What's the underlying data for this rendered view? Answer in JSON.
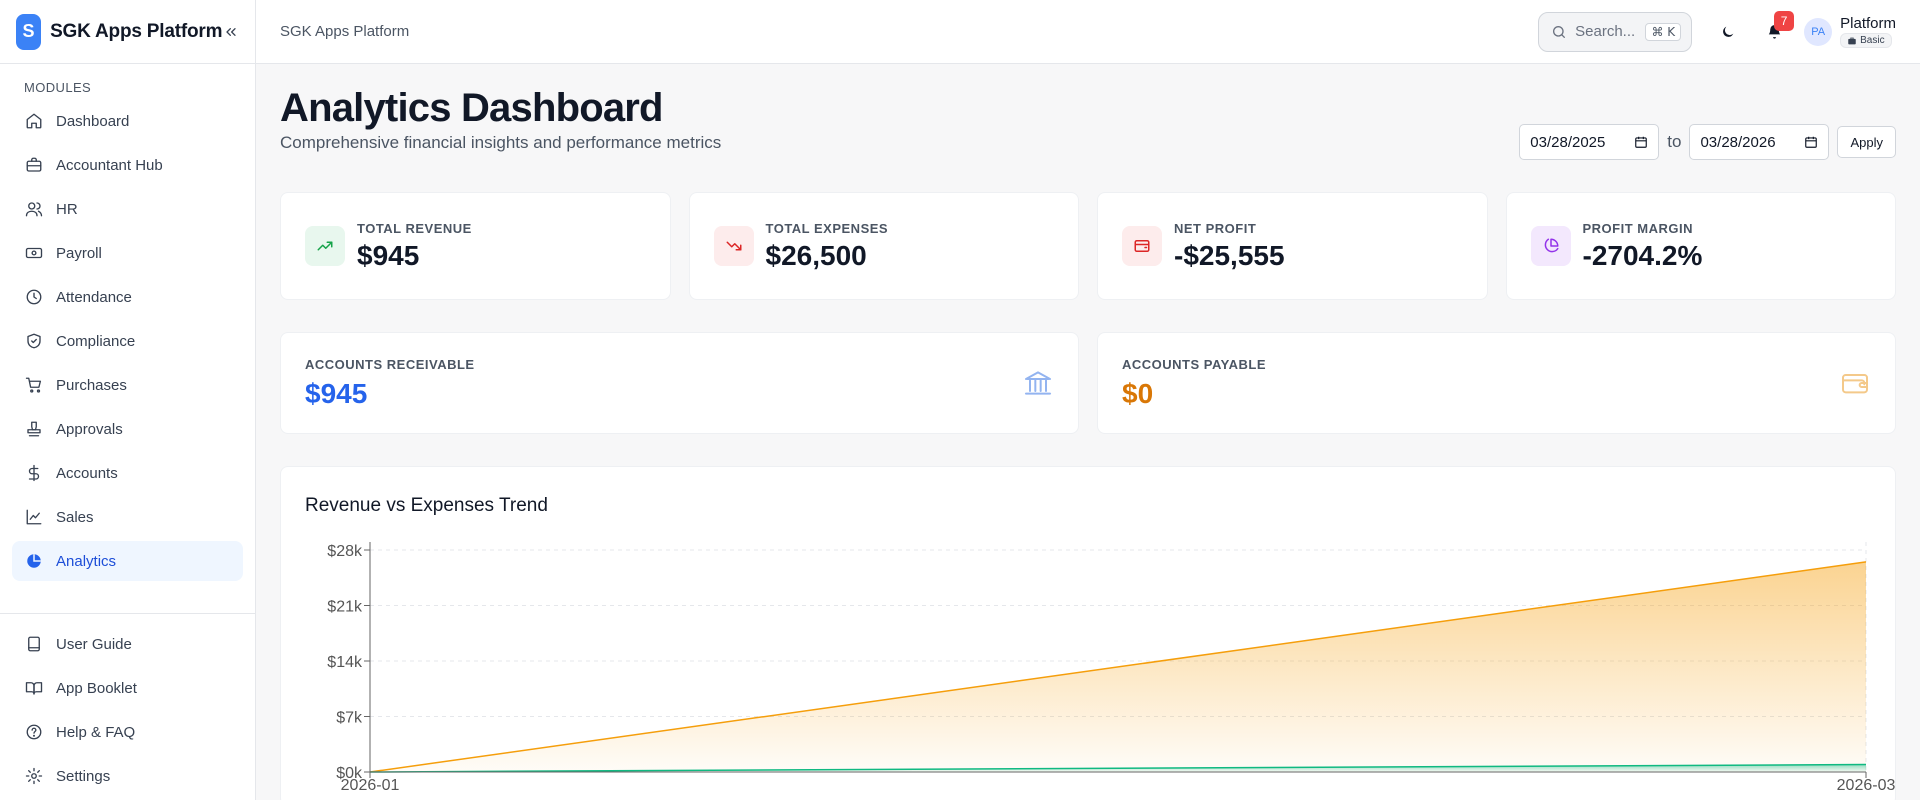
{
  "brand": {
    "logo_letter": "S",
    "name": "SGK Apps Platform"
  },
  "sidebar": {
    "section_label": "MODULES",
    "items": [
      {
        "label": "Dashboard",
        "icon": "home-icon"
      },
      {
        "label": "Accountant Hub",
        "icon": "briefcase-icon"
      },
      {
        "label": "HR",
        "icon": "users-icon"
      },
      {
        "label": "Payroll",
        "icon": "banknote-icon"
      },
      {
        "label": "Attendance",
        "icon": "clock-icon"
      },
      {
        "label": "Compliance",
        "icon": "shield-check-icon"
      },
      {
        "label": "Purchases",
        "icon": "cart-icon"
      },
      {
        "label": "Approvals",
        "icon": "stamp-icon"
      },
      {
        "label": "Accounts",
        "icon": "dollar-icon"
      },
      {
        "label": "Sales",
        "icon": "line-chart-icon"
      },
      {
        "label": "Analytics",
        "icon": "pie-chart-icon",
        "active": true
      }
    ],
    "bottom_items": [
      {
        "label": "User Guide",
        "icon": "book-icon"
      },
      {
        "label": "App Booklet",
        "icon": "book-open-icon"
      },
      {
        "label": "Help & FAQ",
        "icon": "help-circle-icon"
      },
      {
        "label": "Settings",
        "icon": "gear-icon"
      }
    ]
  },
  "header": {
    "title": "SGK Apps Platform",
    "search_placeholder": "Search...",
    "search_shortcut": "⌘ K",
    "notification_count": "7",
    "avatar_initials": "PA",
    "user_name": "Platform",
    "plan": "Basic"
  },
  "page": {
    "title": "Analytics Dashboard",
    "subtitle": "Comprehensive financial insights and performance metrics",
    "date_from": "03/28/2025",
    "date_sep": "to",
    "date_to": "03/28/2026",
    "apply_label": "Apply"
  },
  "kpis": [
    {
      "label": "TOTAL REVENUE",
      "value": "$945",
      "icon": "trending-up-icon",
      "color": "#16a34a",
      "bg": "#e8f7ee"
    },
    {
      "label": "TOTAL EXPENSES",
      "value": "$26,500",
      "icon": "trending-down-icon",
      "color": "#dc2626",
      "bg": "#fdecec"
    },
    {
      "label": "NET PROFIT",
      "value": "-$25,555",
      "icon": "wallet-icon",
      "color": "#dc2626",
      "bg": "#fdecec"
    },
    {
      "label": "PROFIT MARGIN",
      "value": "-2704.2%",
      "icon": "pie-chart-icon",
      "color": "#9333ea",
      "bg": "#f3e8fd"
    }
  ],
  "accounts": [
    {
      "label": "ACCOUNTS RECEIVABLE",
      "value": "$945",
      "color": "#2563eb",
      "icon": "bank-icon"
    },
    {
      "label": "ACCOUNTS PAYABLE",
      "value": "$0",
      "color": "#d97706",
      "icon": "wallet-icon"
    }
  ],
  "chart": {
    "title": "Revenue vs Expenses Trend"
  },
  "chart_data": {
    "type": "area",
    "title": "Revenue vs Expenses Trend",
    "x": [
      "2026-01",
      "2026-03"
    ],
    "y_ticks": [
      "$0k",
      "$7k",
      "$14k",
      "$21k",
      "$28k"
    ],
    "ylim": [
      0,
      28000
    ],
    "grid": true,
    "series": [
      {
        "values": [
          0,
          26500
        ],
        "color": "#f59e0b"
      },
      {
        "values": [
          0,
          945
        ],
        "color": "#10b981"
      }
    ]
  }
}
